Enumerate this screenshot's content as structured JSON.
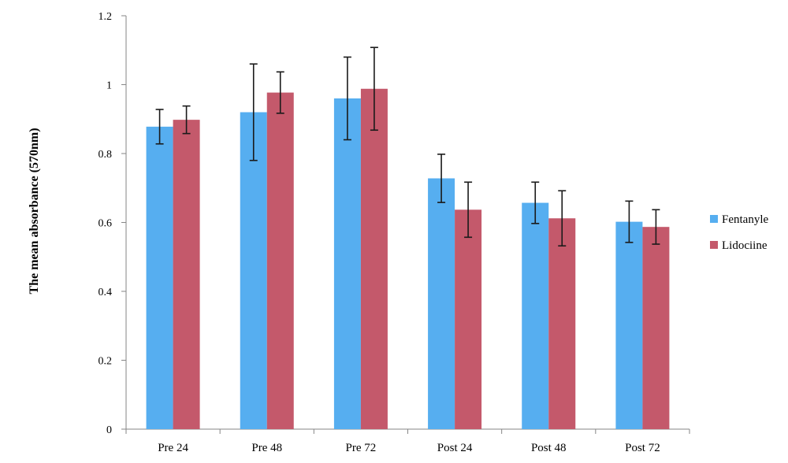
{
  "chart_data": {
    "type": "bar",
    "title": "",
    "xlabel": "",
    "ylabel": "The mean absorbance (570nm)",
    "ylim": [
      0,
      1.2
    ],
    "yticks": [
      "0",
      "0.2",
      "0.4",
      "0.6",
      "0.8",
      "1",
      "1.2"
    ],
    "grid": false,
    "legend_position": "right",
    "categories": [
      "Pre 24",
      "Pre 48",
      "Pre 72",
      "Post 24",
      "Post 48",
      "Post 72"
    ],
    "series": [
      {
        "name": "Fentanyle",
        "color": "#56aef0",
        "values": [
          0.878,
          0.92,
          0.96,
          0.728,
          0.657,
          0.602
        ],
        "error": [
          0.05,
          0.14,
          0.12,
          0.07,
          0.06,
          0.06
        ]
      },
      {
        "name": "Lidociine",
        "color": "#c4596b",
        "values": [
          0.898,
          0.977,
          0.988,
          0.637,
          0.612,
          0.587
        ],
        "error": [
          0.04,
          0.06,
          0.12,
          0.08,
          0.08,
          0.05
        ]
      }
    ]
  }
}
